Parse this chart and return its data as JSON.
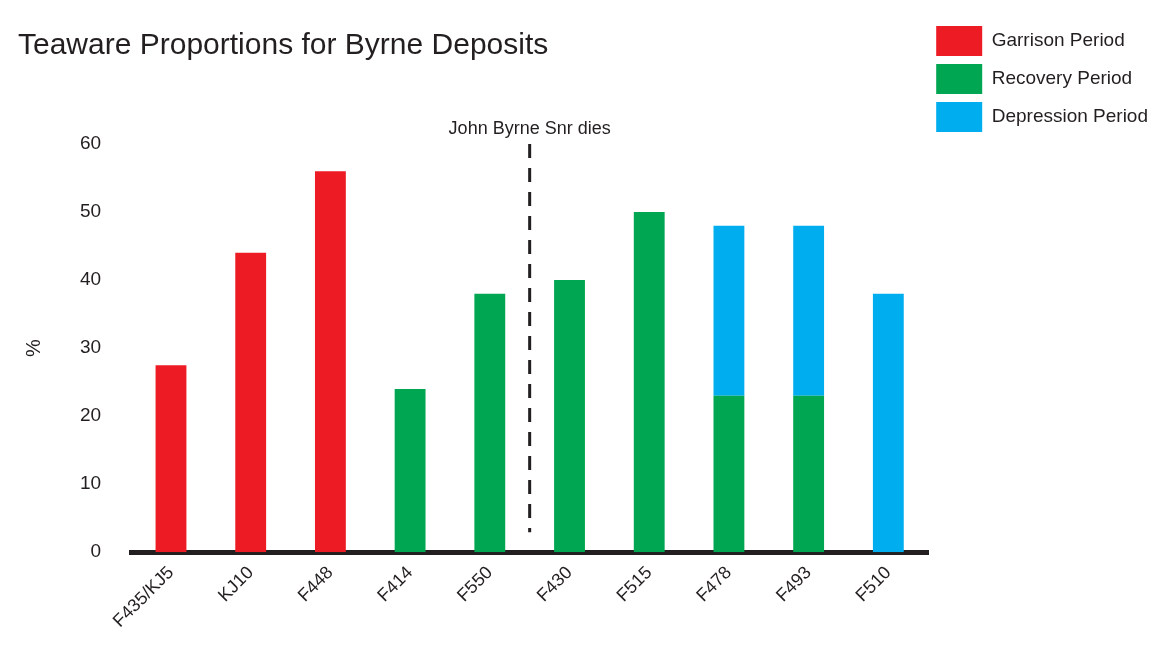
{
  "chart_data": {
    "type": "bar",
    "title": "Teaware Proportions for Byrne Deposits",
    "ylabel": "%",
    "categories": [
      "F435/KJ5",
      "KJ10",
      "F448",
      "F414",
      "F550",
      "F430",
      "F515",
      "F478",
      "F493",
      "F510"
    ],
    "stacked": true,
    "series": [
      {
        "name": "Garrison Period",
        "color": "#ed1c24",
        "values": [
          27.5,
          44,
          56,
          null,
          null,
          null,
          null,
          null,
          null,
          null
        ]
      },
      {
        "name": "Recovery Period",
        "color": "#00a651",
        "values": [
          null,
          null,
          null,
          24,
          38,
          40,
          50,
          23,
          23,
          null
        ]
      },
      {
        "name": "Depression Period",
        "color": "#00aeef",
        "values": [
          null,
          null,
          null,
          null,
          null,
          null,
          null,
          25,
          25,
          38
        ]
      }
    ],
    "ylim": [
      0,
      60
    ],
    "yticks": [
      0,
      10,
      20,
      30,
      40,
      50,
      60
    ],
    "grid": false,
    "legend": "top right",
    "annotations": [
      "John Byrne Snr dies"
    ]
  }
}
